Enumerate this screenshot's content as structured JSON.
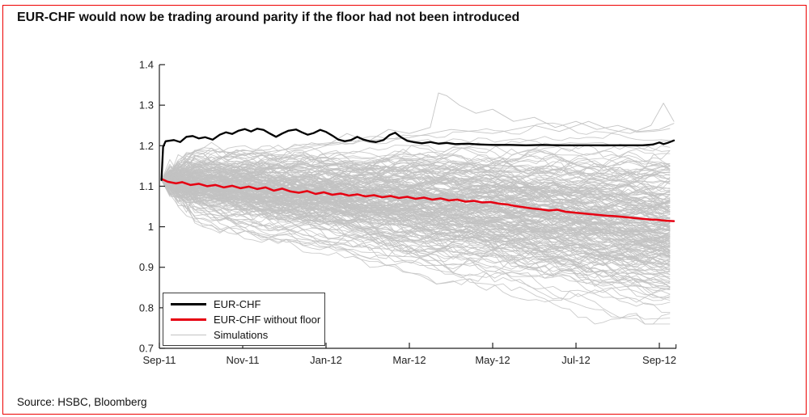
{
  "page": {
    "title": "EUR-CHF would now be trading around parity if the floor had not been introduced",
    "source": "Source: HSBC, Bloomberg",
    "border_color": "#ee0000",
    "background": "#ffffff"
  },
  "chart_data": {
    "type": "line",
    "title": "",
    "xlabel": "",
    "ylabel": "",
    "x_unit": "months since Sep-2011",
    "x_tick_months": [
      0,
      2,
      4,
      6,
      8,
      10,
      12
    ],
    "x_tick_labels": [
      "Sep-11",
      "Nov-11",
      "Jan-12",
      "Mar-12",
      "May-12",
      "Jul-12",
      "Sep-12"
    ],
    "x_end_month": 12.4,
    "ylim": [
      0.7,
      1.4
    ],
    "y_ticks": [
      0.7,
      0.8,
      0.9,
      1,
      1.1,
      1.2,
      1.3,
      1.4
    ],
    "grid": false,
    "legend_position": "lower-left",
    "axis_color": "#222222",
    "series": [
      {
        "name": "EUR-CHF",
        "color": "#000000",
        "width": 2.3,
        "points": [
          [
            0.05,
            1.115
          ],
          [
            0.09,
            1.197
          ],
          [
            0.15,
            1.211
          ],
          [
            0.35,
            1.214
          ],
          [
            0.5,
            1.209
          ],
          [
            0.65,
            1.222
          ],
          [
            0.8,
            1.224
          ],
          [
            0.95,
            1.218
          ],
          [
            1.1,
            1.221
          ],
          [
            1.28,
            1.215
          ],
          [
            1.45,
            1.227
          ],
          [
            1.6,
            1.233
          ],
          [
            1.75,
            1.229
          ],
          [
            1.9,
            1.237
          ],
          [
            2.05,
            1.241
          ],
          [
            2.2,
            1.235
          ],
          [
            2.35,
            1.242
          ],
          [
            2.5,
            1.239
          ],
          [
            2.65,
            1.23
          ],
          [
            2.8,
            1.222
          ],
          [
            2.95,
            1.23
          ],
          [
            3.1,
            1.237
          ],
          [
            3.28,
            1.24
          ],
          [
            3.42,
            1.233
          ],
          [
            3.56,
            1.227
          ],
          [
            3.7,
            1.231
          ],
          [
            3.86,
            1.239
          ],
          [
            4.0,
            1.234
          ],
          [
            4.15,
            1.225
          ],
          [
            4.3,
            1.215
          ],
          [
            4.45,
            1.211
          ],
          [
            4.6,
            1.214
          ],
          [
            4.75,
            1.222
          ],
          [
            4.9,
            1.215
          ],
          [
            5.05,
            1.211
          ],
          [
            5.2,
            1.209
          ],
          [
            5.38,
            1.214
          ],
          [
            5.52,
            1.226
          ],
          [
            5.66,
            1.232
          ],
          [
            5.8,
            1.221
          ],
          [
            5.95,
            1.212
          ],
          [
            6.1,
            1.209
          ],
          [
            6.3,
            1.206
          ],
          [
            6.5,
            1.209
          ],
          [
            6.7,
            1.205
          ],
          [
            6.9,
            1.207
          ],
          [
            7.1,
            1.204
          ],
          [
            7.4,
            1.205
          ],
          [
            7.7,
            1.203
          ],
          [
            8.0,
            1.202
          ],
          [
            8.4,
            1.202
          ],
          [
            8.8,
            1.201
          ],
          [
            9.2,
            1.202
          ],
          [
            9.6,
            1.201
          ],
          [
            10.0,
            1.201
          ],
          [
            10.4,
            1.201
          ],
          [
            10.8,
            1.201
          ],
          [
            11.2,
            1.201
          ],
          [
            11.6,
            1.201
          ],
          [
            11.85,
            1.203
          ],
          [
            12.0,
            1.208
          ],
          [
            12.1,
            1.204
          ],
          [
            12.2,
            1.207
          ],
          [
            12.35,
            1.213
          ]
        ]
      },
      {
        "name": "EUR-CHF without floor",
        "color": "#e60012",
        "width": 2.5,
        "points": [
          [
            0.05,
            1.118
          ],
          [
            0.2,
            1.111
          ],
          [
            0.4,
            1.107
          ],
          [
            0.55,
            1.11
          ],
          [
            0.75,
            1.103
          ],
          [
            0.95,
            1.106
          ],
          [
            1.15,
            1.1
          ],
          [
            1.35,
            1.103
          ],
          [
            1.55,
            1.097
          ],
          [
            1.75,
            1.101
          ],
          [
            1.95,
            1.095
          ],
          [
            2.15,
            1.099
          ],
          [
            2.35,
            1.093
          ],
          [
            2.55,
            1.097
          ],
          [
            2.75,
            1.089
          ],
          [
            2.95,
            1.094
          ],
          [
            3.15,
            1.087
          ],
          [
            3.35,
            1.084
          ],
          [
            3.55,
            1.088
          ],
          [
            3.75,
            1.081
          ],
          [
            3.95,
            1.085
          ],
          [
            4.15,
            1.079
          ],
          [
            4.35,
            1.082
          ],
          [
            4.55,
            1.077
          ],
          [
            4.75,
            1.08
          ],
          [
            4.95,
            1.075
          ],
          [
            5.15,
            1.078
          ],
          [
            5.35,
            1.073
          ],
          [
            5.55,
            1.076
          ],
          [
            5.75,
            1.071
          ],
          [
            5.95,
            1.074
          ],
          [
            6.15,
            1.069
          ],
          [
            6.35,
            1.072
          ],
          [
            6.55,
            1.067
          ],
          [
            6.75,
            1.07
          ],
          [
            6.95,
            1.065
          ],
          [
            7.15,
            1.067
          ],
          [
            7.35,
            1.062
          ],
          [
            7.55,
            1.064
          ],
          [
            7.75,
            1.06
          ],
          [
            7.95,
            1.061
          ],
          [
            8.15,
            1.057
          ],
          [
            8.35,
            1.055
          ],
          [
            8.55,
            1.051
          ],
          [
            8.75,
            1.048
          ],
          [
            8.95,
            1.045
          ],
          [
            9.15,
            1.043
          ],
          [
            9.35,
            1.04
          ],
          [
            9.55,
            1.042
          ],
          [
            9.75,
            1.037
          ],
          [
            9.95,
            1.035
          ],
          [
            10.15,
            1.033
          ],
          [
            10.35,
            1.031
          ],
          [
            10.55,
            1.029
          ],
          [
            10.75,
            1.027
          ],
          [
            10.95,
            1.026
          ],
          [
            11.15,
            1.024
          ],
          [
            11.35,
            1.022
          ],
          [
            11.55,
            1.02
          ],
          [
            11.75,
            1.018
          ],
          [
            11.95,
            1.017
          ],
          [
            12.15,
            1.015
          ],
          [
            12.35,
            1.014
          ]
        ]
      }
    ],
    "simulations": {
      "name": "Simulations",
      "color": "#c2c2c2",
      "line_width": 0.9,
      "count": 215,
      "seed": 11,
      "start_month": 0.05,
      "end_month": 12.35,
      "step_months": 0.2,
      "start_value": 1.115,
      "drift_total_mean": -0.105,
      "drift_total_sd": 0.05,
      "step_noise_sd": 0.009,
      "early_vol_multiplier": 1.9,
      "soft_ceiling": 1.2,
      "ceiling_compress": 0.55,
      "floor_clamp": 0.76,
      "envelope_note": "paths fan out from ~1.11 in Sep-11 to a dense 0.86-1.20 band (outliers 0.79-1.33) by Sep-12",
      "highlight_paths": [
        [
          [
            0.05,
            1.115
          ],
          [
            1,
            1.15
          ],
          [
            2,
            1.19
          ],
          [
            3,
            1.17
          ],
          [
            4,
            1.2
          ],
          [
            4.5,
            1.23
          ],
          [
            5,
            1.21
          ],
          [
            5.5,
            1.24
          ],
          [
            6,
            1.23
          ],
          [
            6.5,
            1.245
          ],
          [
            6.7,
            1.33
          ],
          [
            6.9,
            1.323
          ],
          [
            7.2,
            1.3
          ],
          [
            7.6,
            1.28
          ],
          [
            8,
            1.29
          ],
          [
            8.5,
            1.26
          ],
          [
            9,
            1.27
          ],
          [
            9.5,
            1.245
          ],
          [
            10,
            1.26
          ],
          [
            10.5,
            1.24
          ],
          [
            11,
            1.25
          ],
          [
            11.5,
            1.235
          ],
          [
            12,
            1.24
          ],
          [
            12.35,
            1.255
          ]
        ],
        [
          [
            0.05,
            1.115
          ],
          [
            1.5,
            1.17
          ],
          [
            3,
            1.19
          ],
          [
            4.5,
            1.21
          ],
          [
            6,
            1.22
          ],
          [
            7,
            1.24
          ],
          [
            8,
            1.23
          ],
          [
            9,
            1.25
          ],
          [
            9.6,
            1.235
          ],
          [
            10.3,
            1.26
          ],
          [
            10.8,
            1.24
          ],
          [
            11.3,
            1.23
          ],
          [
            11.8,
            1.25
          ],
          [
            12.1,
            1.305
          ],
          [
            12.35,
            1.26
          ]
        ]
      ]
    },
    "legend": [
      {
        "label": "EUR-CHF",
        "color": "#000000",
        "thick": true
      },
      {
        "label": "EUR-CHF without floor",
        "color": "#e60012",
        "thick": true
      },
      {
        "label": "Simulations",
        "color": "#c2c2c2",
        "thick": false
      }
    ]
  }
}
